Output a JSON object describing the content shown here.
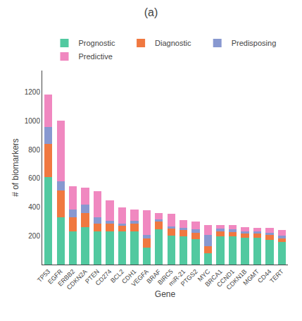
{
  "chart_data": {
    "type": "bar",
    "title": "(a)",
    "xlabel": "Gene",
    "ylabel": "# of biomarkers",
    "categories": [
      "TP53",
      "EGFR",
      "ERBB2",
      "CDKN2A",
      "PTEN",
      "CD274",
      "BCL2",
      "CDH1",
      "VEGFA",
      "BRAF",
      "BIRC5",
      "miR-21",
      "PTGS2",
      "MYC",
      "BRCA1",
      "CCND1",
      "CDKN1B",
      "MGMT",
      "CD44",
      "TERT"
    ],
    "series": [
      {
        "name": "Prognostic",
        "color": "#52C9A0",
        "values": [
          610,
          330,
          230,
          260,
          230,
          230,
          230,
          230,
          120,
          245,
          200,
          195,
          175,
          80,
          195,
          195,
          185,
          185,
          170,
          155
        ]
      },
      {
        "name": "Diagnostic",
        "color": "#F07840",
        "values": [
          230,
          185,
          100,
          100,
          55,
          55,
          40,
          55,
          60,
          55,
          50,
          45,
          45,
          50,
          35,
          30,
          30,
          30,
          35,
          25
        ]
      },
      {
        "name": "Predisposing",
        "color": "#8898D0",
        "values": [
          115,
          65,
          55,
          55,
          45,
          20,
          15,
          20,
          25,
          15,
          15,
          15,
          25,
          75,
          20,
          20,
          15,
          15,
          15,
          20
        ]
      },
      {
        "name": "Predictive",
        "color": "#F088C0",
        "values": [
          230,
          420,
          160,
          120,
          180,
          140,
          115,
          80,
          175,
          45,
          90,
          55,
          55,
          70,
          25,
          30,
          30,
          25,
          35,
          40
        ]
      }
    ],
    "stacked": true,
    "ylim": [
      0,
      1350
    ],
    "yticks": [
      200,
      400,
      600,
      800,
      1000,
      1200
    ],
    "grid": false,
    "legend": "top"
  }
}
